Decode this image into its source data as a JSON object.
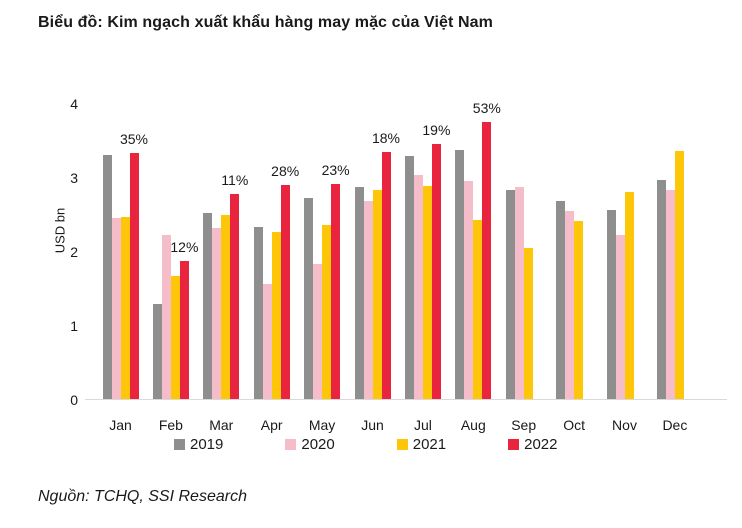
{
  "title": "Biểu đồ: Kim ngạch xuất khẩu hàng may mặc của Việt Nam",
  "source": "Nguồn: TCHQ, SSI Research",
  "chart_data": {
    "type": "bar",
    "title": "Biểu đồ: Kim ngạch xuất khẩu hàng may mặc của Việt Nam",
    "xlabel": "",
    "ylabel": "USD bn",
    "ylim": [
      0,
      4
    ],
    "yticks": [
      0,
      1,
      2,
      3,
      4
    ],
    "grid": false,
    "legend_position": "bottom",
    "background": "#ffffff",
    "axis_line_color": "#d9d9d9",
    "text_color": "#1a1a1a",
    "categories": [
      "Jan",
      "Feb",
      "Mar",
      "Apr",
      "May",
      "Jun",
      "Jul",
      "Aug",
      "Sep",
      "Oct",
      "Nov",
      "Dec"
    ],
    "series": [
      {
        "name": "2019",
        "color": "#8e8e8e",
        "values": [
          3.3,
          1.28,
          2.52,
          2.33,
          2.72,
          2.87,
          3.29,
          3.37,
          2.82,
          2.67,
          2.56,
          2.96
        ]
      },
      {
        "name": "2020",
        "color": "#f5bdc9",
        "values": [
          2.45,
          2.21,
          2.31,
          1.56,
          1.83,
          2.67,
          3.03,
          2.95,
          2.87,
          2.54,
          2.22,
          2.83
        ]
      },
      {
        "name": "2021",
        "color": "#fdc608",
        "values": [
          2.46,
          1.66,
          2.49,
          2.26,
          2.35,
          2.83,
          2.88,
          2.42,
          2.04,
          2.41,
          2.8,
          3.35
        ]
      },
      {
        "name": "2022",
        "color": "#e8243f",
        "values": [
          3.32,
          1.86,
          2.77,
          2.89,
          2.9,
          3.34,
          3.44,
          3.74,
          null,
          null,
          null,
          null
        ]
      }
    ],
    "bar_labels": {
      "series": "2022",
      "values": [
        "35%",
        "12%",
        "11%",
        "28%",
        "23%",
        "18%",
        "19%",
        "53%",
        null,
        null,
        null,
        null
      ]
    }
  }
}
